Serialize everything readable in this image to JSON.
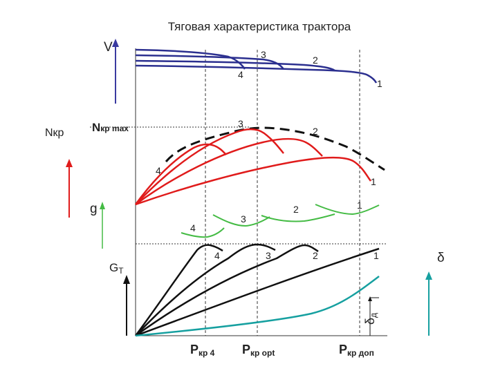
{
  "title": "Тяговая характеристика трактора",
  "axes": {
    "V": "V",
    "Nkp": "Nкр",
    "g": "g",
    "GT_main": "G",
    "GT_sub": "T",
    "delta": "δ",
    "delta_d_main": "δ",
    "delta_d_sub": "д"
  },
  "nmax": {
    "N": "N",
    "sub": "кр max"
  },
  "pkr": [
    {
      "P": "P",
      "sub": "кр 4"
    },
    {
      "P": "P",
      "sub": "кр opt"
    },
    {
      "P": "P",
      "sub": "кр доп"
    }
  ],
  "gear_labels": {
    "v": [
      "4",
      "3",
      "2",
      "1"
    ],
    "n": [
      "4",
      "3",
      "2",
      "1"
    ],
    "g": [
      "4",
      "3",
      "2",
      "1"
    ],
    "gt": [
      "4",
      "3",
      "2",
      "1"
    ]
  },
  "colors": {
    "v_curves": "#2b2f8f",
    "n_curves": "#e01b1b",
    "g_curves": "#44bb44",
    "gt_curves": "#111111",
    "delta_curve": "#16a0a0",
    "axis_V": "#3a3aa0",
    "axis_N": "#e01b1b",
    "axis_g": "#44bb44",
    "axis_delta": "#16a0a0"
  }
}
